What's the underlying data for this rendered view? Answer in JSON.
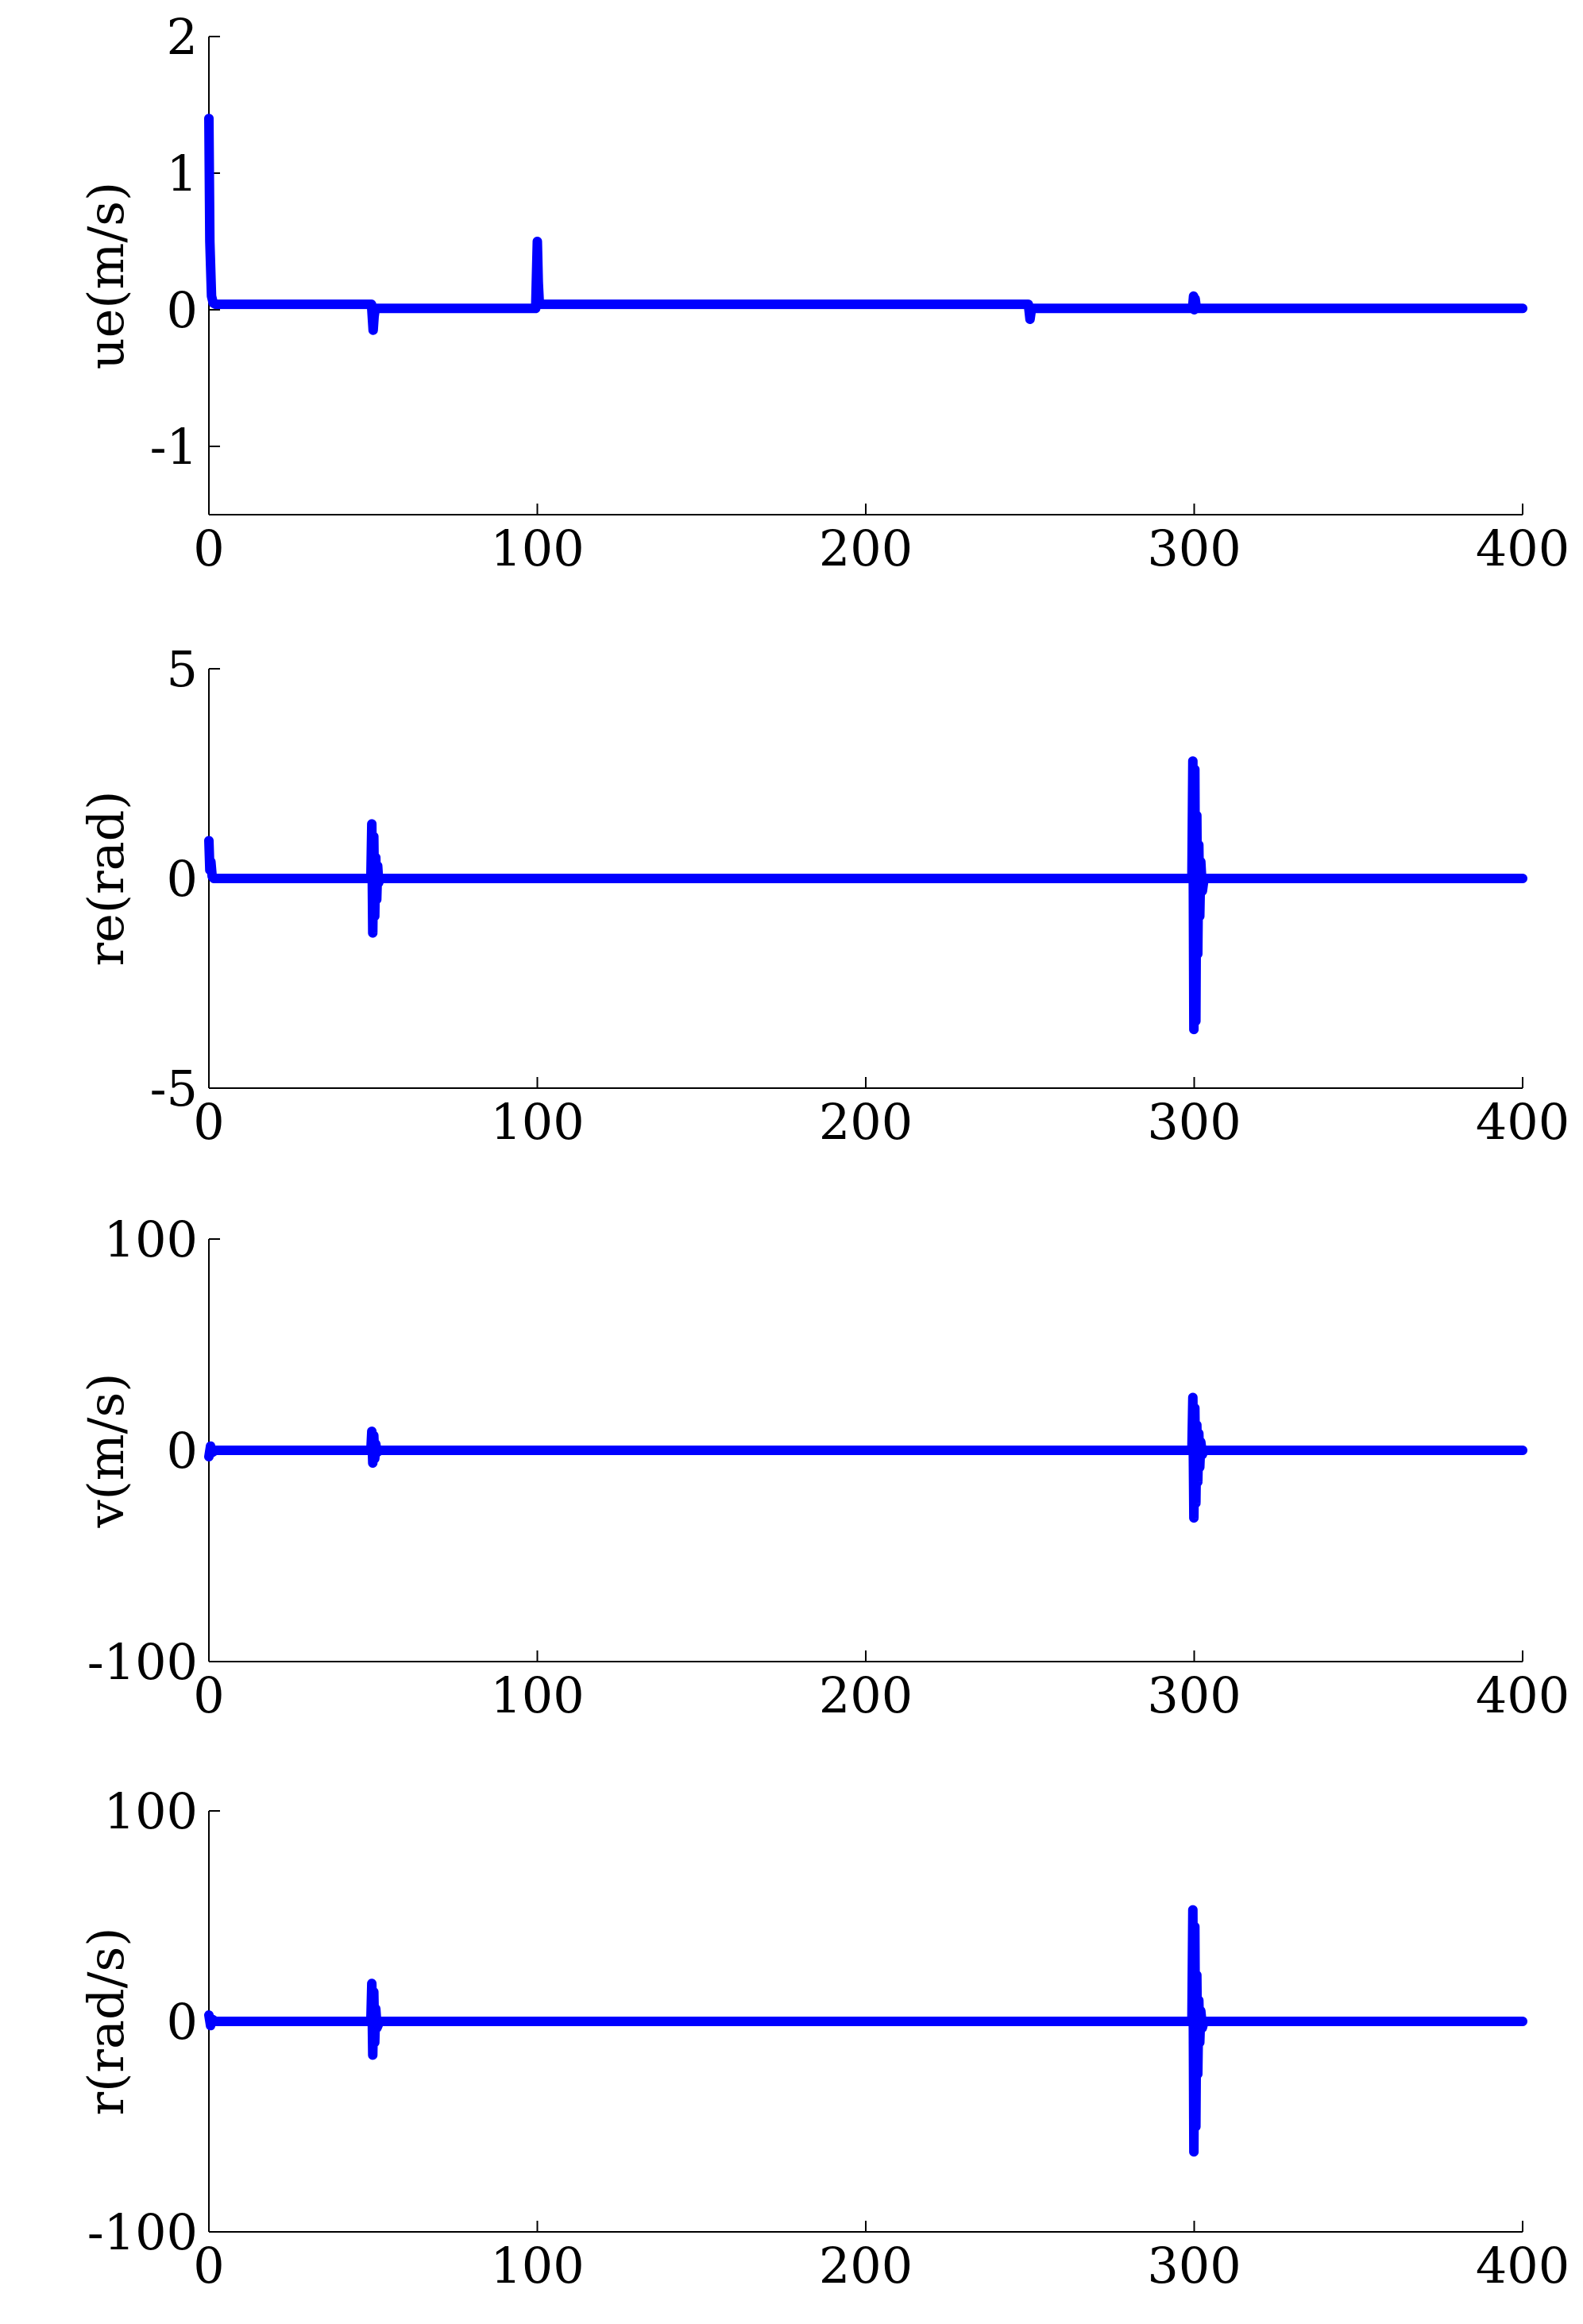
{
  "chart_data": [
    {
      "type": "line",
      "xlabel": "",
      "ylabel": "ue(m/s)",
      "xlim": [
        0,
        400
      ],
      "ylim": [
        -1.5,
        2
      ],
      "xticks": [
        "0",
        "100",
        "200",
        "300",
        "400"
      ],
      "yticks": [
        "2",
        "1",
        "0",
        "-1"
      ],
      "ytick_values": [
        2,
        1,
        0,
        -1
      ],
      "grid": false,
      "color": "#0000ff",
      "series": [
        {
          "x": [
            0,
            0.3,
            0.8,
            1.3,
            2,
            3,
            5,
            10,
            20,
            30,
            40,
            49.5,
            50,
            50.3,
            50.6,
            51,
            52,
            60,
            70,
            80,
            90,
            99.5,
            100,
            100.3,
            100.6,
            101,
            102,
            150,
            200,
            249.5,
            250,
            250.3,
            250.6,
            251,
            260,
            299.5,
            299.8,
            300,
            300.3,
            300.6,
            301,
            302,
            310,
            350,
            400
          ],
          "y": [
            1.4,
            0.5,
            0.1,
            0.05,
            0.04,
            0.04,
            0.04,
            0.04,
            0.04,
            0.04,
            0.04,
            0.04,
            -0.15,
            -0.05,
            0.0,
            0.01,
            0.01,
            0.01,
            0.01,
            0.01,
            0.01,
            0.01,
            0.5,
            0.2,
            0.05,
            0.04,
            0.04,
            0.04,
            0.04,
            0.04,
            -0.07,
            -0.02,
            0.01,
            0.01,
            0.01,
            0.01,
            0.1,
            0.0,
            0.08,
            0.02,
            0.01,
            0.01,
            0.01,
            0.01,
            0.01
          ]
        }
      ]
    },
    {
      "type": "line",
      "xlabel": "",
      "ylabel": "re(rad)",
      "xlim": [
        0,
        400
      ],
      "ylim": [
        -5,
        5
      ],
      "xticks": [
        "0",
        "100",
        "200",
        "300",
        "400"
      ],
      "yticks": [
        "5",
        "0",
        "-5"
      ],
      "ytick_values": [
        5,
        0,
        -5
      ],
      "grid": false,
      "color": "#0000ff",
      "series": [
        {
          "x": [
            0,
            0.3,
            0.6,
            1,
            1.5,
            2,
            5,
            20,
            40,
            49.3,
            49.6,
            49.9,
            50.2,
            50.5,
            50.8,
            51.1,
            51.4,
            51.7,
            52,
            60,
            100,
            200,
            299.3,
            299.6,
            299.9,
            300.2,
            300.5,
            300.8,
            301.1,
            301.4,
            301.7,
            302,
            302.5,
            303,
            310,
            400
          ],
          "y": [
            0.9,
            0.2,
            0.4,
            0.05,
            0,
            0,
            0,
            0,
            0,
            0,
            1.3,
            -1.3,
            1.0,
            -0.9,
            0.5,
            -0.5,
            0.3,
            -0.1,
            0,
            0,
            0,
            0,
            0,
            2.8,
            -3.6,
            2.6,
            -3.4,
            1.5,
            -1.8,
            0.8,
            -0.9,
            0.4,
            -0.3,
            0,
            0,
            0
          ]
        }
      ]
    },
    {
      "type": "line",
      "xlabel": "",
      "ylabel": "v(m/s)",
      "xlim": [
        0,
        400
      ],
      "ylim": [
        -100,
        100
      ],
      "xticks": [
        "0",
        "100",
        "200",
        "300",
        "400"
      ],
      "yticks": [
        "100",
        "0",
        "-100"
      ],
      "ytick_values": [
        100,
        0,
        -100
      ],
      "grid": false,
      "color": "#0000ff",
      "series": [
        {
          "x": [
            0,
            0.5,
            1,
            2,
            10,
            40,
            49.3,
            49.6,
            49.9,
            50.2,
            50.5,
            50.8,
            51.2,
            52,
            100,
            200,
            299.3,
            299.6,
            299.9,
            300.2,
            300.5,
            300.8,
            301.1,
            301.4,
            301.7,
            302,
            302.5,
            303,
            310,
            400
          ],
          "y": [
            -3,
            2,
            -1,
            0,
            0,
            0,
            0,
            9,
            -6,
            7,
            -4,
            3,
            -1,
            0,
            0,
            0,
            0,
            25,
            -32,
            20,
            -25,
            12,
            -15,
            8,
            -8,
            4,
            -2,
            0,
            0,
            0
          ]
        }
      ]
    },
    {
      "type": "line",
      "xlabel": "",
      "ylabel": "r(rad/s)",
      "xlim": [
        0,
        400
      ],
      "ylim": [
        -100,
        100
      ],
      "xticks": [
        "0",
        "100",
        "200",
        "300",
        "400"
      ],
      "yticks": [
        "100",
        "0",
        "-100"
      ],
      "ytick_values": [
        100,
        0,
        -100
      ],
      "grid": false,
      "color": "#0000ff",
      "series": [
        {
          "x": [
            0,
            0.5,
            1,
            2,
            10,
            40,
            49.3,
            49.6,
            49.9,
            50.2,
            50.5,
            50.8,
            51.2,
            52,
            100,
            200,
            299.3,
            299.6,
            299.9,
            300.2,
            300.5,
            300.8,
            301.1,
            301.4,
            301.7,
            302,
            302.5,
            303,
            310,
            400
          ],
          "y": [
            3,
            -2,
            1,
            0,
            0,
            0,
            0,
            18,
            -16,
            14,
            -10,
            6,
            -3,
            0,
            0,
            0,
            0,
            53,
            -62,
            45,
            -50,
            22,
            -25,
            10,
            -10,
            5,
            -3,
            0,
            0,
            0
          ]
        }
      ]
    }
  ]
}
